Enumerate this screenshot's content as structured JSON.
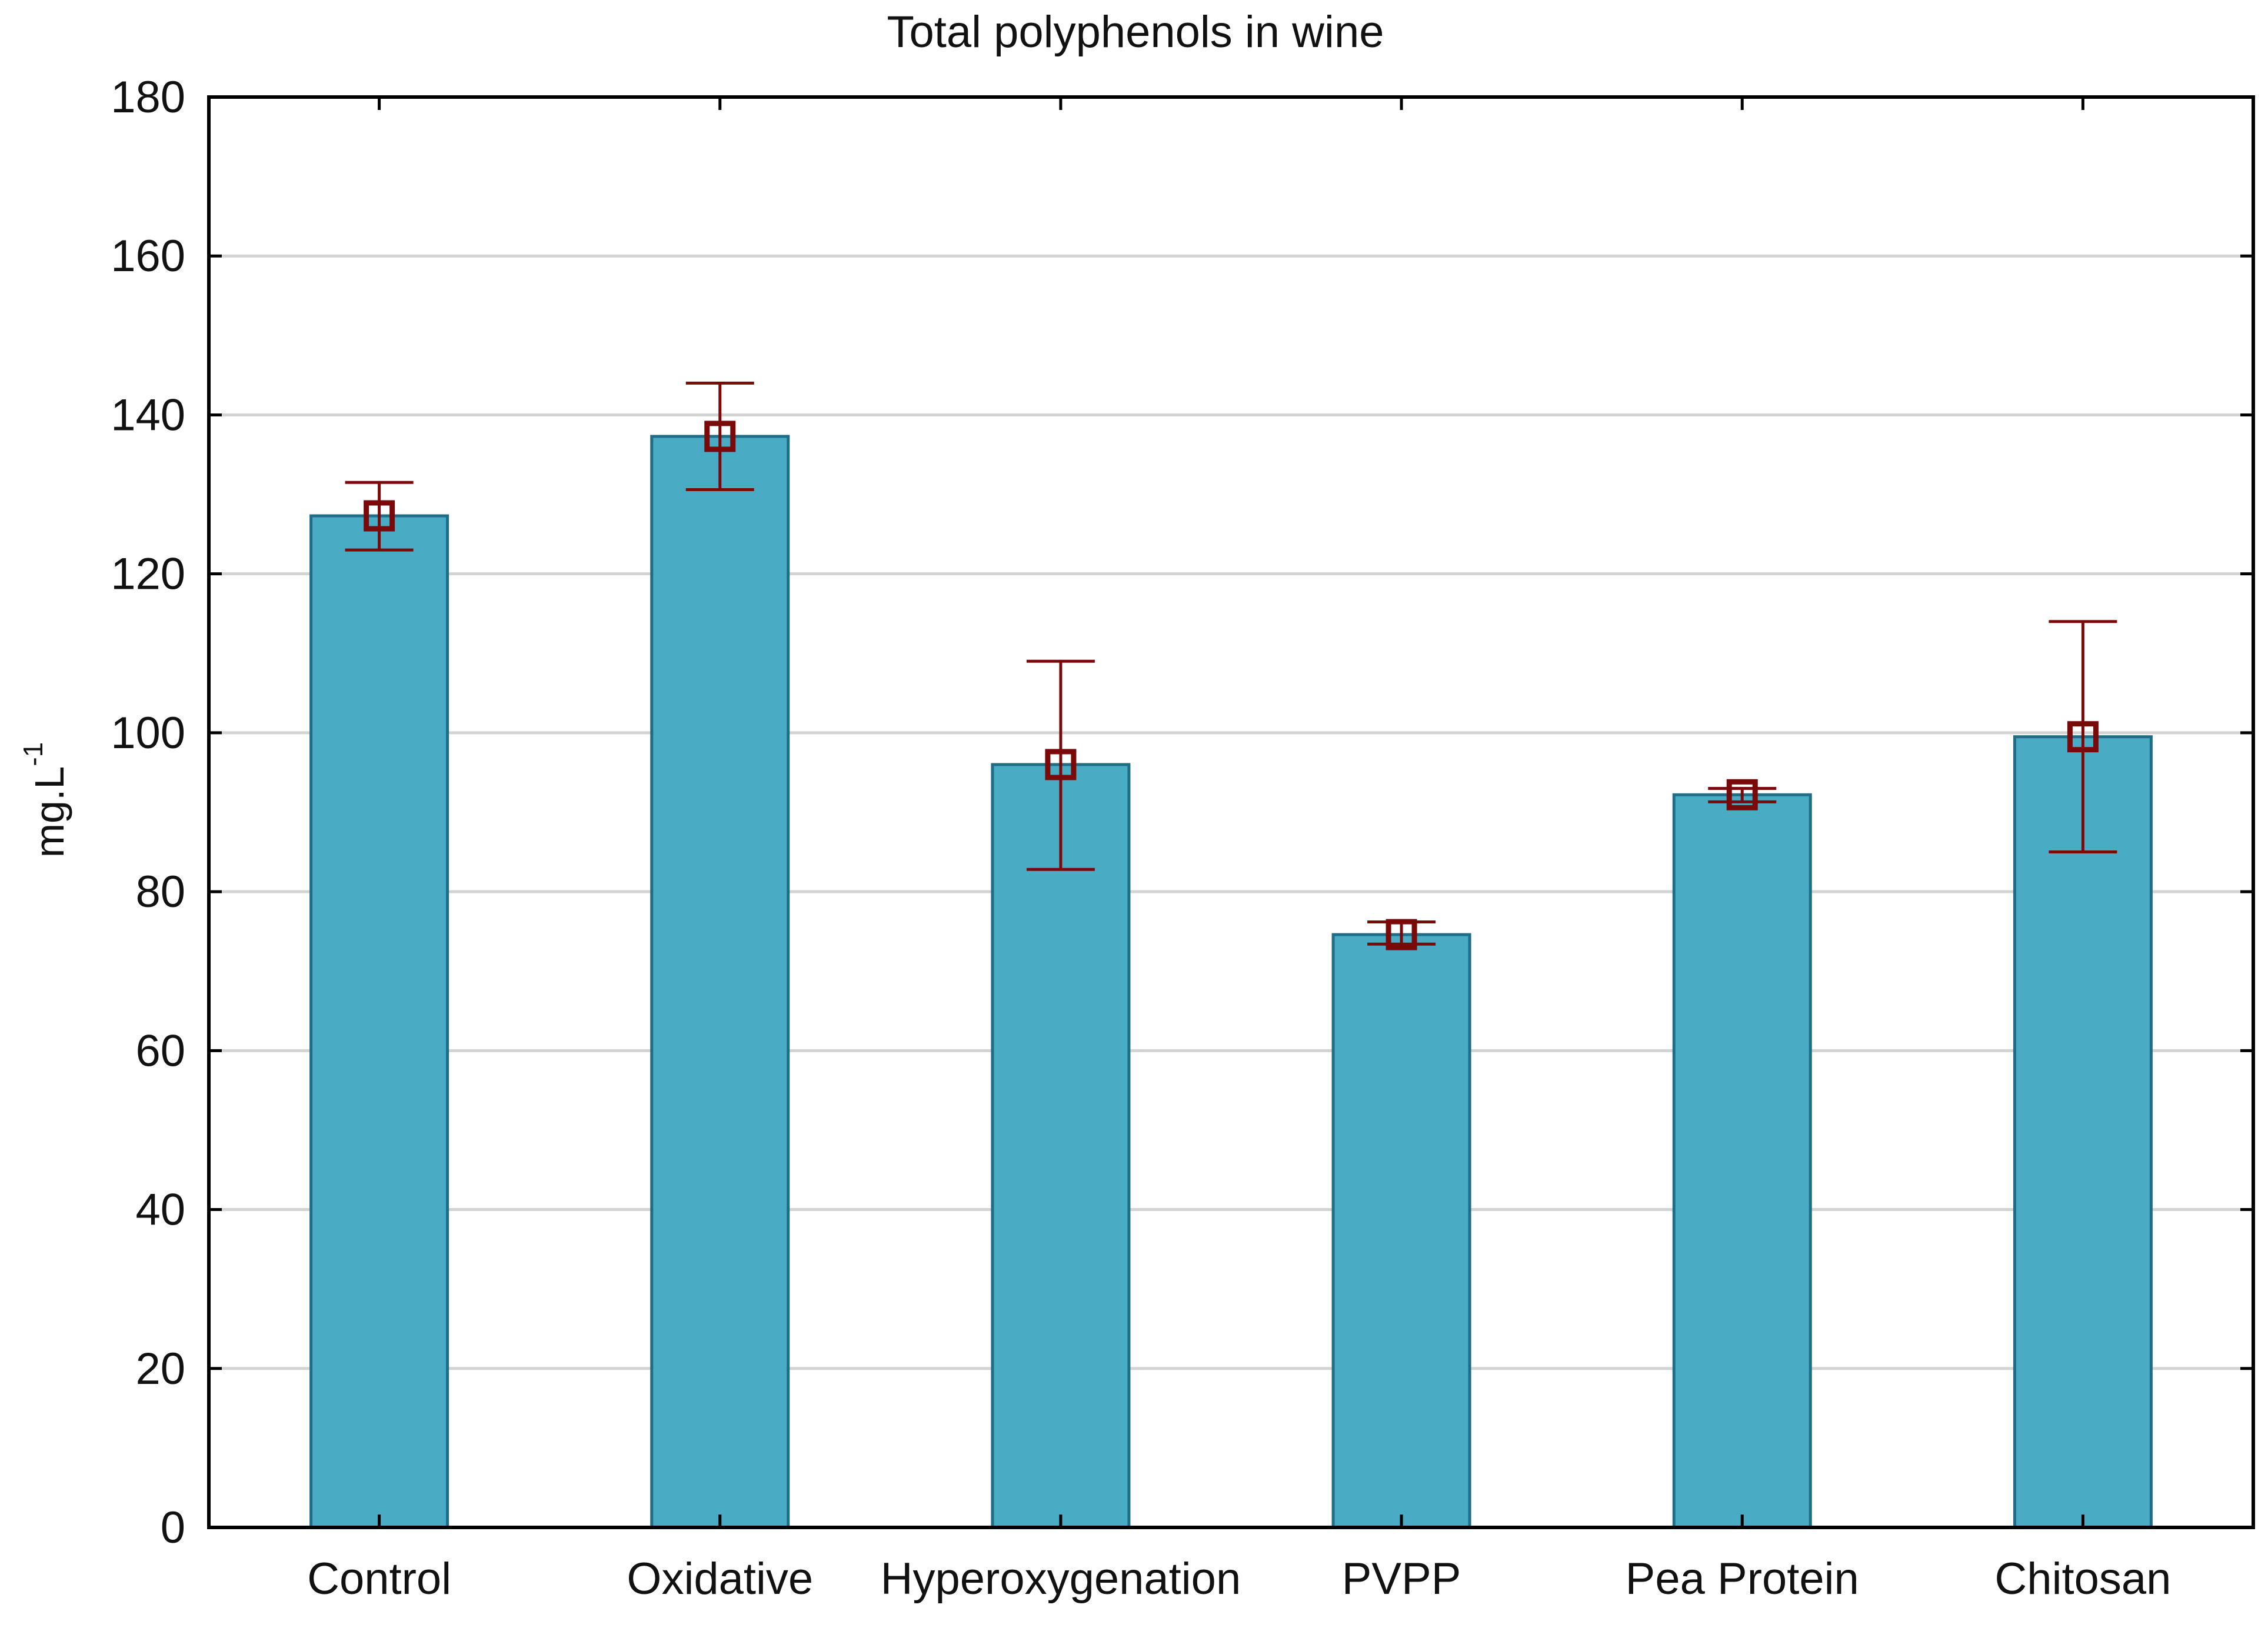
{
  "chart_data": {
    "type": "bar",
    "title": "Total polyphenols in wine",
    "xlabel": "",
    "ylabel": "mg.L",
    "ylabel_superscript": "-1",
    "ylim": [
      0,
      180
    ],
    "yticks": [
      0,
      20,
      40,
      60,
      80,
      100,
      120,
      140,
      160,
      180
    ],
    "grid": true,
    "categories": [
      "Control",
      "Oxidative",
      "Hyperoxygenation",
      "PVPP",
      "Pea Protein",
      "Chitosan"
    ],
    "values": [
      127.3,
      137.3,
      96.0,
      74.6,
      92.2,
      99.5
    ],
    "error_upper": [
      131.5,
      144.0,
      109.0,
      76.2,
      93.0,
      114.0
    ],
    "error_lower": [
      123.0,
      130.6,
      82.8,
      73.4,
      91.3,
      85.0
    ],
    "colors": {
      "bar_fill": "#4AABC5",
      "bar_stroke": "#1F6E85",
      "error": "#7A0A0A",
      "grid": "#D3D3D3",
      "axis": "#000000"
    }
  }
}
